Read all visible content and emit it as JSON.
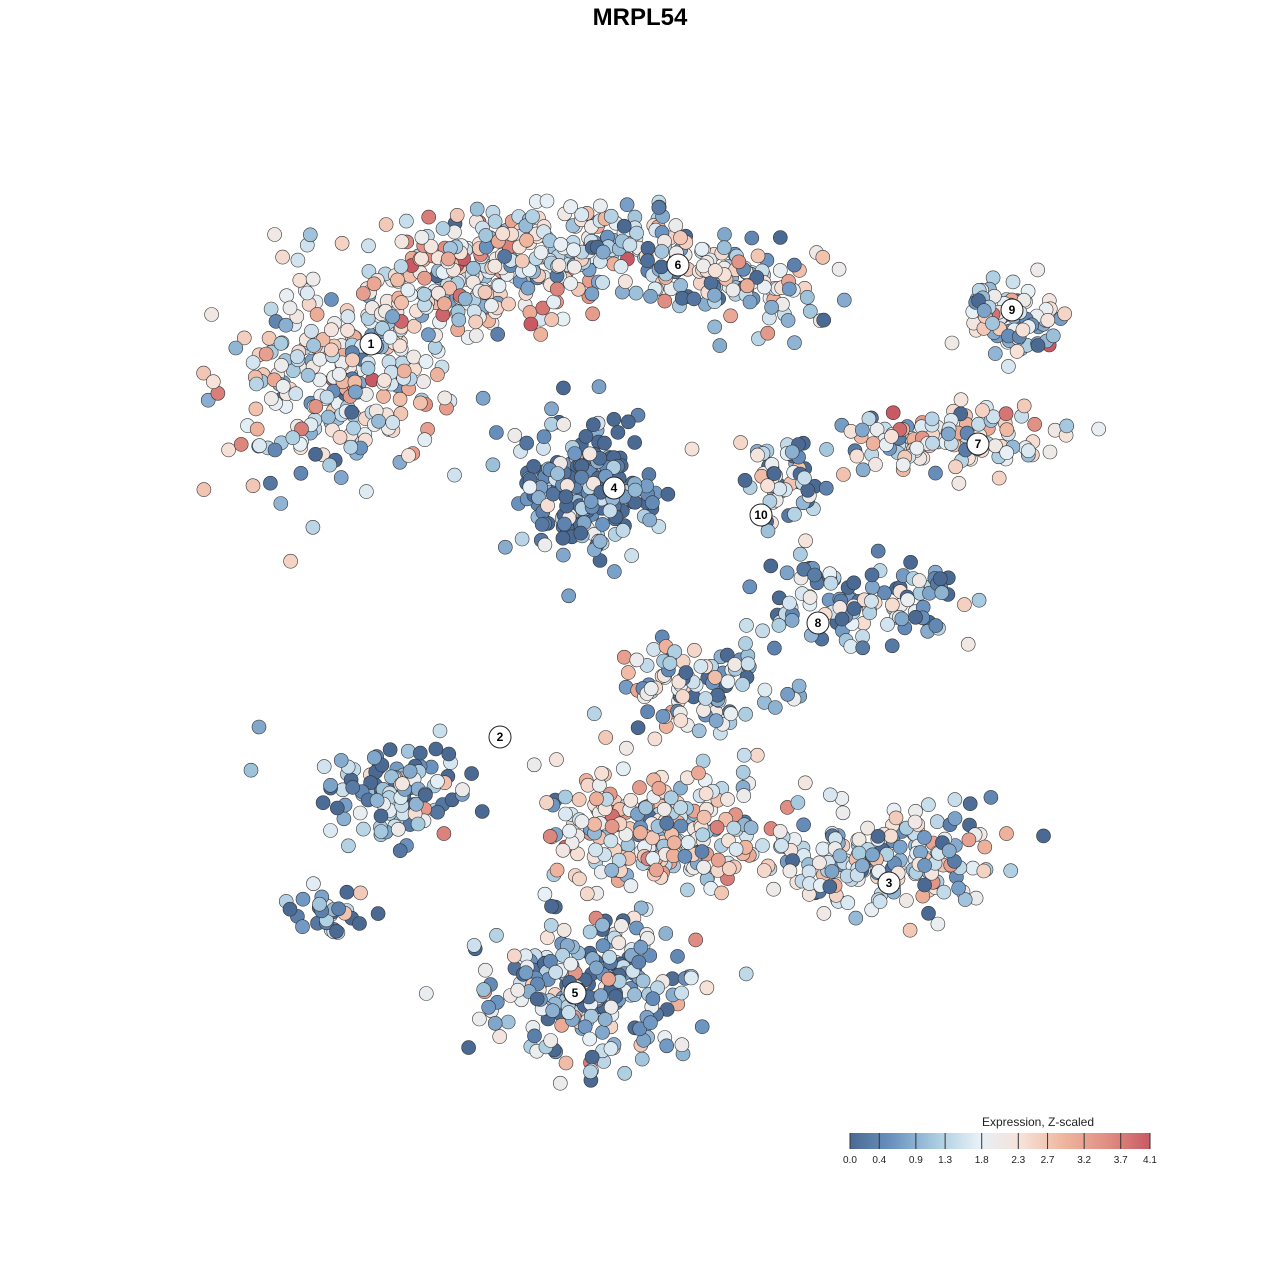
{
  "chart_data": {
    "type": "scatter",
    "title": "MRPL54",
    "legend": {
      "title": "Expression, Z-scaled",
      "ticks": [
        0.0,
        0.4,
        0.9,
        1.3,
        1.8,
        2.3,
        2.7,
        3.2,
        3.7,
        4.1
      ],
      "tick_labels": [
        "0.0",
        "0.4",
        "0.9",
        "1.3",
        "1.8",
        "2.3",
        "2.7",
        "3.2",
        "3.7",
        "4.1"
      ],
      "range": [
        0.0,
        4.1
      ],
      "placement": "bottom-right",
      "colors": [
        "#4a6a93",
        "#6b93c0",
        "#a9cbe0",
        "#e7f0f6",
        "#f6e2d8",
        "#efb59e",
        "#e08f83",
        "#c95a64"
      ]
    },
    "clusters": [
      {
        "label": "1"
      },
      {
        "label": "2"
      },
      {
        "label": "3"
      },
      {
        "label": "4"
      },
      {
        "label": "5"
      },
      {
        "label": "6"
      },
      {
        "label": "7"
      },
      {
        "label": "8"
      },
      {
        "label": "9"
      },
      {
        "label": "10"
      }
    ],
    "point_style": {
      "stroke": "#333333",
      "fill_low": "#4a6a93",
      "fill_high": "#c95a64"
    },
    "grid": false,
    "axes_visible": false
  }
}
